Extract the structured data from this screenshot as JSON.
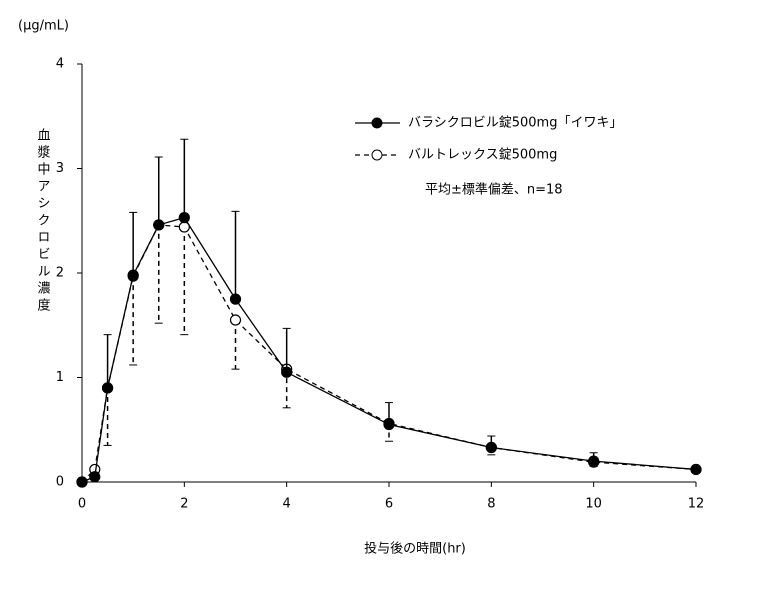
{
  "chart_data": {
    "type": "line",
    "unit_label": "(μg/mL)",
    "y_label": "血漿中アシクロビル濃度",
    "x_label": "投与後の時間(hr)",
    "annotation": "平均±標準偏差、n=18",
    "x": [
      0,
      0.25,
      0.5,
      1,
      1.5,
      2,
      3,
      4,
      6,
      8,
      10,
      12
    ],
    "series": [
      {
        "name": "バラシクロビル錠500mg「イワキ」",
        "color": "#000000",
        "marker": "filled",
        "dash": "solid",
        "error_direction": "up",
        "values": [
          0,
          0.05,
          0.9,
          1.98,
          2.46,
          2.53,
          1.75,
          1.05,
          0.55,
          0.33,
          0.2,
          0.12
        ],
        "errors": [
          null,
          null,
          0.51,
          0.6,
          0.65,
          0.75,
          0.84,
          0.42,
          0.21,
          0.11,
          0.08,
          null
        ]
      },
      {
        "name": "バルトレックス錠500mg",
        "color": "#000000",
        "marker": "open",
        "dash": "dashed",
        "error_direction": "down",
        "values": [
          0,
          0.12,
          0.9,
          1.97,
          2.46,
          2.44,
          1.55,
          1.08,
          0.56,
          0.33,
          0.19,
          0.12
        ],
        "errors": [
          null,
          null,
          0.55,
          0.85,
          0.94,
          1.03,
          0.47,
          0.37,
          0.17,
          0.07,
          0.04,
          null
        ]
      }
    ],
    "xlim": [
      0,
      12
    ],
    "xticks": [
      0,
      2,
      4,
      6,
      8,
      10,
      12
    ],
    "ylim": [
      0,
      4
    ],
    "yticks": [
      0,
      1,
      2,
      3,
      4
    ],
    "grid": false
  }
}
